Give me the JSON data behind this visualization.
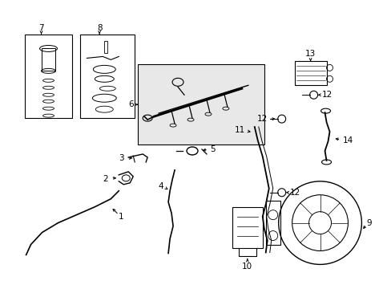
{
  "bg_color": "#ffffff",
  "line_color": "#000000",
  "fig_width": 4.89,
  "fig_height": 3.6,
  "dpi": 100,
  "label_fontsize": 7.5
}
